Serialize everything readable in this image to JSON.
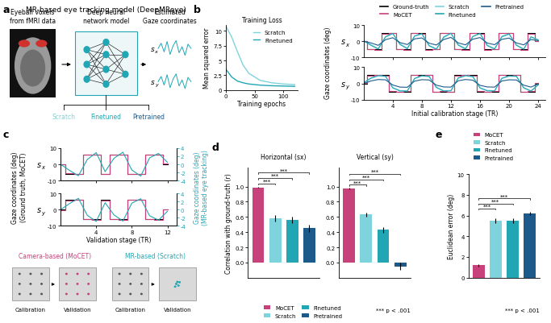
{
  "panel_labels": [
    "a",
    "b",
    "c",
    "d",
    "e"
  ],
  "panel_a": {
    "title": "MR-based eye tracking model (DeepMReye)",
    "input": "Eyeball voxels\nfrom fMRI data",
    "model": "Deep neural\nnetwork model",
    "output": "Estimated\nGaze coordinates",
    "coords": [
      "sx",
      "sy"
    ],
    "variants": [
      {
        "name": "Scratch",
        "color": "#7fd3dd"
      },
      {
        "name": "Finetuned",
        "color": "#22a6b3"
      },
      {
        "name": "Pretrained",
        "color": "#1d5a8c"
      }
    ]
  },
  "panel_c_diagram": {
    "left_title": "Camera-based (MoCET)",
    "left_color": "#c7417b",
    "right_title": "MR-based (Scratch)",
    "right_color": "#22a6b3",
    "stages": [
      "Calibration",
      "Validation"
    ]
  },
  "chart_data": [
    {
      "type": "line",
      "title": "Training Loss",
      "xlabel": "Training epochs",
      "ylabel": "Mean squared error",
      "x": [
        0,
        10,
        20,
        30,
        40,
        60,
        80,
        100,
        120
      ],
      "xlim": [
        0,
        125
      ],
      "xticks": [
        0,
        50,
        100
      ],
      "ylim": [
        0,
        11
      ],
      "yticks": [
        0,
        2.5,
        5,
        7.5,
        10
      ],
      "legend": "upper right",
      "series": [
        {
          "name": "Scratch",
          "color": "#7fd3dd",
          "values": [
            10.8,
            9.0,
            6.5,
            4.2,
            2.8,
            1.6,
            1.2,
            1.0,
            0.9
          ]
        },
        {
          "name": "Finetuned",
          "color": "#22a6b3",
          "values": [
            3.5,
            2.2,
            1.5,
            1.2,
            1.0,
            0.8,
            0.7,
            0.65,
            0.6
          ]
        }
      ]
    },
    {
      "type": "line",
      "xlabel": "Initial calibration stage (TR)",
      "ylabel": "Gaze coordinates (deg)",
      "x": [
        0,
        1,
        2,
        3,
        4,
        5,
        6,
        7,
        8,
        9,
        10,
        11,
        12,
        13,
        14,
        15,
        16,
        17,
        18,
        19,
        20,
        21,
        22,
        23,
        24
      ],
      "xlim": [
        0,
        25
      ],
      "xticks": [
        4,
        8,
        12,
        16,
        20,
        24
      ],
      "ylim": [
        -10,
        10
      ],
      "yticks": [
        -10,
        0,
        10
      ],
      "legend": "upper center",
      "panels": [
        {
          "label": "sx",
          "series": [
            {
              "name": "Ground-truth",
              "color": "#000000",
              "line_style": "steps",
              "values": [
                0,
                -5,
                -5,
                5,
                5,
                -5,
                -5,
                5,
                5,
                -5,
                -5,
                5,
                5,
                -5,
                -5,
                5,
                5,
                -5,
                -5,
                5,
                5,
                -5,
                -5,
                5,
                0
              ]
            },
            {
              "name": "MoCET",
              "color": "#c7417b",
              "line_style": "steps",
              "values": [
                0,
                -4.6,
                -5.2,
                4.8,
                5.3,
                -4.9,
                -5.1,
                5.2,
                4.7,
                -5.3,
                -4.8,
                4.9,
                5.1,
                -4.7,
                -5.2,
                5,
                4.8,
                -5.1,
                -4.9,
                5.2,
                4.9,
                -4.8,
                -5.2,
                4.7,
                0.3
              ]
            },
            {
              "name": "Scratch",
              "color": "#7fd3dd",
              "line_style": "solid",
              "values": [
                0.5,
                -2,
                -4.5,
                2.5,
                4.6,
                -1.5,
                -4.2,
                3,
                4.5,
                -2.5,
                -4.6,
                2.2,
                4.8,
                -2,
                -4.4,
                2.8,
                4.7,
                -2.3,
                -4.5,
                2.6,
                4.3,
                -2.1,
                -4.7,
                2.4,
                1
              ]
            },
            {
              "name": "Finetuned",
              "color": "#22a6b3",
              "line_style": "solid",
              "values": [
                0.3,
                -2.5,
                -4.8,
                2.8,
                4.9,
                -2,
                -4.6,
                3.3,
                4.7,
                -2.8,
                -4.9,
                2.7,
                5,
                -2.4,
                -4.8,
                3,
                4.9,
                -2.7,
                -4.8,
                3,
                4.6,
                -2.5,
                -4.9,
                2.8,
                0.8
              ]
            },
            {
              "name": "Pretrained",
              "color": "#1d5a8c",
              "line_style": "solid",
              "values": [
                0,
                -1,
                -2.5,
                1,
                2.2,
                -0.8,
                -2,
                1.5,
                2.1,
                -1.2,
                -2.3,
                1.1,
                2.4,
                -1,
                -2.2,
                1.3,
                2.3,
                -1.1,
                -2.1,
                1.2,
                2,
                -1,
                -2.2,
                1.1,
                0.4
              ]
            }
          ]
        },
        {
          "label": "sy",
          "series": [
            {
              "name": "Ground-truth",
              "color": "#000000",
              "line_style": "steps",
              "values": [
                0,
                5,
                5,
                5,
                -5,
                -5,
                -5,
                5,
                5,
                5,
                -5,
                -5,
                -5,
                5,
                5,
                5,
                -5,
                -5,
                -5,
                5,
                5,
                5,
                -5,
                -5,
                0
              ]
            },
            {
              "name": "MoCET",
              "color": "#c7417b",
              "line_style": "steps",
              "values": [
                0.2,
                4.8,
                5.2,
                4.9,
                -4.7,
                -5.2,
                -4.9,
                5.1,
                4.8,
                5.2,
                -5.1,
                -4.8,
                -5,
                4.9,
                5.2,
                4.8,
                -4.9,
                -5.2,
                -4.8,
                5.1,
                4.9,
                5,
                -5.2,
                -4.9,
                0.1
              ]
            },
            {
              "name": "Scratch",
              "color": "#7fd3dd",
              "line_style": "solid",
              "values": [
                0.5,
                3,
                4.6,
                4.2,
                -2.5,
                -4.4,
                -4.6,
                2.8,
                4.5,
                4.1,
                -2.3,
                -4.5,
                -4.4,
                3.1,
                4.6,
                4,
                -2.6,
                -4.3,
                -4.5,
                2.9,
                4.4,
                4.2,
                -2.5,
                -4.6,
                -1
              ]
            },
            {
              "name": "Finetuned",
              "color": "#22a6b3",
              "line_style": "solid",
              "values": [
                0.4,
                3.3,
                4.8,
                4.5,
                -2.8,
                -4.7,
                -4.8,
                3.1,
                4.7,
                4.4,
                -2.6,
                -4.7,
                -4.6,
                3.4,
                4.8,
                4.3,
                -2.9,
                -4.6,
                -4.7,
                3.2,
                4.6,
                4.5,
                -2.8,
                -4.8,
                -0.8
              ]
            },
            {
              "name": "Pretrained",
              "color": "#1d5a8c",
              "line_style": "solid",
              "values": [
                0,
                1.5,
                2.4,
                2.2,
                -1,
                -2.3,
                -2.4,
                1.4,
                2.3,
                2.1,
                -1.1,
                -2.2,
                -2.3,
                1.6,
                2.4,
                2,
                -1.2,
                -2.2,
                -2.3,
                1.5,
                2.2,
                2.1,
                -1.1,
                -2.3,
                -0.3
              ]
            }
          ]
        }
      ]
    },
    {
      "type": "line",
      "xlabel": "Validation stage (TR)",
      "ylabel": "Gaze coordinates (deg)\n(Ground truth, MoCET)",
      "y2label": "Gaze coordinates (deg)\n(MR-based eye tracking)",
      "y2color": "#22a6b3",
      "x": [
        0,
        1,
        2,
        3,
        4,
        5,
        6,
        7,
        8,
        9,
        10,
        11,
        12
      ],
      "xlim": [
        0,
        13
      ],
      "xticks": [
        4,
        8,
        12
      ],
      "ylim": [
        -10,
        10
      ],
      "yticks": [
        -10,
        0,
        10
      ],
      "y2lim": [
        -4,
        4
      ],
      "y2ticks": [
        -4,
        -2,
        0,
        2,
        4
      ],
      "panels": [
        {
          "label": "sx",
          "series": [
            {
              "color": "#000000",
              "line_style": "steps",
              "values": [
                0,
                -6,
                -6,
                6,
                6,
                -6,
                6,
                6,
                -6,
                -6,
                6,
                6,
                0
              ]
            },
            {
              "color": "#c7417b",
              "line_style": "steps",
              "values": [
                0.2,
                -5.7,
                -6.2,
                5.8,
                6.1,
                -5.8,
                5.9,
                6.2,
                -5.9,
                -6.1,
                5.8,
                6.1,
                0.3
              ]
            },
            {
              "color": "#22a6b3",
              "line_style": "solid",
              "axis": "y2",
              "values": [
                0,
                -1.5,
                -2.8,
                1.2,
                2.9,
                -1.8,
                1.5,
                3,
                -1.4,
                -2.9,
                1.6,
                2.7,
                0.5
              ]
            }
          ]
        },
        {
          "label": "sy",
          "series": [
            {
              "color": "#000000",
              "line_style": "steps",
              "values": [
                0,
                6,
                6,
                -6,
                -6,
                6,
                -6,
                -6,
                6,
                6,
                -6,
                -6,
                0
              ]
            },
            {
              "color": "#c7417b",
              "line_style": "steps",
              "values": [
                -0.2,
                5.8,
                6.1,
                -5.9,
                -6.2,
                5.7,
                -5.8,
                -6.1,
                6,
                5.9,
                -5.8,
                -6.2,
                0.2
              ]
            },
            {
              "color": "#22a6b3",
              "line_style": "solid",
              "axis": "y2",
              "values": [
                0,
                1.5,
                2.8,
                -1.4,
                -2.9,
                1.7,
                -1.3,
                -2.8,
                1.6,
                2.7,
                -1.5,
                -2.6,
                -0.4
              ]
            }
          ]
        }
      ]
    },
    {
      "type": "bar",
      "title": "Horizontal (sx)",
      "ylabel": "Correlation with ground-truth (r)",
      "categories": [
        "MoCET",
        "Scratch",
        "Finetuned",
        "Pretrained"
      ],
      "values": [
        0.99,
        0.58,
        0.56,
        0.45
      ],
      "errors": [
        0.005,
        0.04,
        0.04,
        0.05
      ],
      "colors": [
        "#c7417b",
        "#7fd3dd",
        "#22a6b3",
        "#1d5a8c"
      ],
      "ylim": [
        -0.2,
        1.25
      ],
      "yticks": [
        0.0,
        0.2,
        0.4,
        0.6,
        0.8,
        1.0
      ],
      "tick_labels": "y",
      "legend": "lower center",
      "significance": [
        {
          "pair": [
            0,
            1
          ],
          "label": "***"
        },
        {
          "pair": [
            0,
            2
          ],
          "label": "***"
        },
        {
          "pair": [
            0,
            3
          ],
          "label": "***"
        }
      ]
    },
    {
      "type": "bar",
      "title": "Vertical (sy)",
      "categories": [
        "MoCET",
        "Scratch",
        "Finetuned",
        "Pretrained"
      ],
      "values": [
        0.97,
        0.63,
        0.43,
        -0.05
      ],
      "errors": [
        0.01,
        0.03,
        0.035,
        0.05
      ],
      "colors": [
        "#c7417b",
        "#7fd3dd",
        "#22a6b3",
        "#1d5a8c"
      ],
      "ylim": [
        -0.2,
        1.25
      ],
      "yticks": [
        0.0,
        0.2,
        0.4,
        0.6,
        0.8,
        1.0
      ],
      "tick_labels": "y",
      "significance": [
        {
          "pair": [
            0,
            1
          ],
          "label": "***"
        },
        {
          "pair": [
            0,
            2
          ],
          "label": "***"
        },
        {
          "pair": [
            0,
            3
          ],
          "label": "***"
        }
      ],
      "note": "*** p < .001"
    },
    {
      "type": "bar",
      "ylabel": "Euclidean error (deg)",
      "categories": [
        "MoCET",
        "Scratch",
        "Finetuned",
        "Pretrained"
      ],
      "values": [
        1.2,
        5.5,
        5.5,
        6.2
      ],
      "errors": [
        0.1,
        0.2,
        0.2,
        0.15
      ],
      "colors": [
        "#c7417b",
        "#7fd3dd",
        "#22a6b3",
        "#1d5a8c"
      ],
      "ylim": [
        0,
        10
      ],
      "yticks": [
        0,
        2,
        4,
        6,
        8,
        10
      ],
      "tick_labels": "y",
      "legend": "upper left",
      "significance": [
        {
          "pair": [
            0,
            1
          ],
          "label": "***"
        },
        {
          "pair": [
            0,
            2
          ],
          "label": "***"
        },
        {
          "pair": [
            0,
            3
          ],
          "label": "***"
        }
      ],
      "note": "*** p < .001"
    }
  ]
}
